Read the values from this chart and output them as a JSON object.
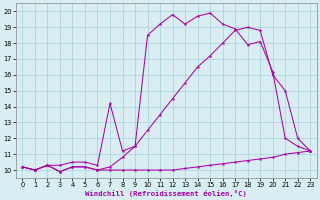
{
  "xlabel": "Windchill (Refroidissement éolien,°C)",
  "xlim": [
    -0.5,
    23.5
  ],
  "ylim": [
    9.5,
    20.5
  ],
  "xticks": [
    0,
    1,
    2,
    3,
    4,
    5,
    6,
    7,
    8,
    9,
    10,
    11,
    12,
    13,
    14,
    15,
    16,
    17,
    18,
    19,
    20,
    21,
    22,
    23
  ],
  "yticks": [
    10,
    11,
    12,
    13,
    14,
    15,
    16,
    17,
    18,
    19,
    20
  ],
  "bg_color": "#d8eef3",
  "grid_color": "#b0d4de",
  "line_color": "#aa00aa",
  "line1_x": [
    0,
    1,
    2,
    3,
    4,
    5,
    6,
    7,
    8,
    9,
    10,
    11,
    12,
    13,
    14,
    15,
    16,
    17,
    18,
    19,
    20,
    21,
    22,
    23
  ],
  "line1_y": [
    10.2,
    10.0,
    10.3,
    9.9,
    10.2,
    10.2,
    10.0,
    10.0,
    10.0,
    10.0,
    10.0,
    10.0,
    10.0,
    10.1,
    10.2,
    10.3,
    10.4,
    10.5,
    10.6,
    10.7,
    10.8,
    11.0,
    11.1,
    11.2
  ],
  "line2_x": [
    0,
    1,
    2,
    3,
    4,
    5,
    6,
    7,
    8,
    9,
    10,
    11,
    12,
    13,
    14,
    15,
    16,
    17,
    18,
    19,
    20,
    21,
    22,
    23
  ],
  "line2_y": [
    10.2,
    10.0,
    10.3,
    10.3,
    10.5,
    10.5,
    10.3,
    14.2,
    11.2,
    11.5,
    18.5,
    19.2,
    19.8,
    19.2,
    19.7,
    19.9,
    19.2,
    18.9,
    17.9,
    18.1,
    16.2,
    12.0,
    11.5,
    11.2
  ],
  "line3_x": [
    0,
    1,
    2,
    3,
    4,
    5,
    6,
    7,
    8,
    9,
    10,
    11,
    12,
    13,
    14,
    15,
    16,
    17,
    18,
    19,
    20,
    21,
    22,
    23
  ],
  "line3_y": [
    10.2,
    10.0,
    10.3,
    9.9,
    10.2,
    10.2,
    10.0,
    10.2,
    10.8,
    11.5,
    12.5,
    13.5,
    14.5,
    15.5,
    16.5,
    17.2,
    18.0,
    18.8,
    19.0,
    18.8,
    16.0,
    15.0,
    12.0,
    11.2
  ]
}
